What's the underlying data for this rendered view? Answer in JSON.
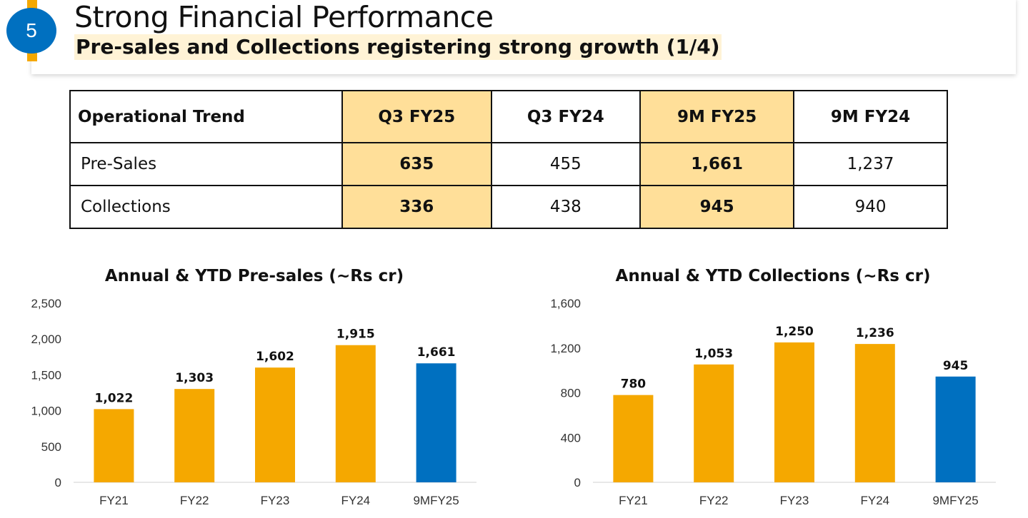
{
  "header": {
    "slide_number": "5",
    "title": "Strong Financial Performance",
    "subtitle": "Pre-sales and Collections registering strong growth (1/4)"
  },
  "table": {
    "headers": [
      "Operational Trend",
      "Q3 FY25",
      "Q3 FY24",
      "9M FY25",
      "9M FY24"
    ],
    "rows": [
      {
        "label": "Pre-Sales",
        "values": [
          "635",
          "455",
          "1,661",
          "1,237"
        ]
      },
      {
        "label": "Collections",
        "values": [
          "336",
          "438",
          "945",
          "940"
        ]
      }
    ]
  },
  "colors": {
    "accent": "#f5a800",
    "brand_blue": "#0070c0",
    "highlight": "#ffdf99"
  },
  "chart_data": [
    {
      "type": "bar",
      "title": "Annual & YTD Pre-sales (~Rs cr)",
      "categories": [
        "FY21",
        "FY22",
        "FY23",
        "FY24",
        "9MFY25"
      ],
      "values": [
        1022,
        1303,
        1602,
        1915,
        1661
      ],
      "data_labels": [
        "1,022",
        "1,303",
        "1,602",
        "1,915",
        "1,661"
      ],
      "bar_colors": [
        "#f5a800",
        "#f5a800",
        "#f5a800",
        "#f5a800",
        "#0070c0"
      ],
      "ylim": [
        0,
        2500
      ],
      "yticks": [
        0,
        500,
        1000,
        1500,
        2000,
        2500
      ],
      "ytick_labels": [
        "0",
        "500",
        "1,000",
        "1,500",
        "2,000",
        "2,500"
      ],
      "grid": false
    },
    {
      "type": "bar",
      "title": "Annual & YTD Collections (~Rs cr)",
      "categories": [
        "FY21",
        "FY22",
        "FY23",
        "FY24",
        "9MFY25"
      ],
      "values": [
        780,
        1053,
        1250,
        1236,
        945
      ],
      "data_labels": [
        "780",
        "1,053",
        "1,250",
        "1,236",
        "945"
      ],
      "bar_colors": [
        "#f5a800",
        "#f5a800",
        "#f5a800",
        "#f5a800",
        "#0070c0"
      ],
      "ylim": [
        0,
        1600
      ],
      "yticks": [
        0,
        400,
        800,
        1200,
        1600
      ],
      "ytick_labels": [
        "0",
        "400",
        "800",
        "1,200",
        "1,600"
      ],
      "grid": false
    }
  ]
}
